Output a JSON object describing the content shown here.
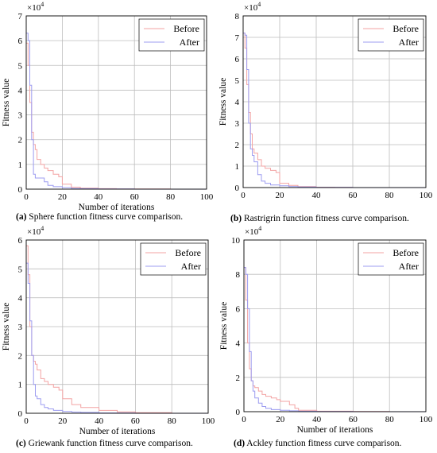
{
  "figure": {
    "panels": [
      {
        "caption_label": "(a)",
        "caption_text": "Sphere function fitness curve comparison.",
        "multiplier": "×10",
        "multiplier_exp": "4",
        "y_ticks": [
          "0",
          "1",
          "2",
          "3",
          "4",
          "5",
          "6",
          "7"
        ],
        "x_ticks": [
          "0",
          "20",
          "40",
          "60",
          "80",
          "100"
        ],
        "xlabel": "Number of iterations",
        "ylabel": "Fitness value",
        "show_xlabel": true,
        "show_ylabel": true
      },
      {
        "caption_label": "(b)",
        "caption_text": "Rastrigrin function fitness curve comparison.",
        "multiplier": "×10",
        "multiplier_exp": "4",
        "y_ticks": [
          "0",
          "1",
          "2",
          "3",
          "4",
          "5",
          "6",
          "7",
          "8"
        ],
        "x_ticks": [
          "0",
          "20",
          "40",
          "60",
          "80",
          "100"
        ],
        "xlabel": "",
        "ylabel": "Fitness value",
        "show_xlabel": false,
        "show_ylabel": true
      },
      {
        "caption_label": "(c)",
        "caption_text": "Griewank function fitness curve comparison.",
        "multiplier": "×10",
        "multiplier_exp": "4",
        "y_ticks": [
          "0",
          "1",
          "2",
          "3",
          "4",
          "5",
          "6"
        ],
        "x_ticks": [
          "0",
          "20",
          "40",
          "60",
          "80",
          "100"
        ],
        "xlabel": "Number of iterations",
        "ylabel": "Fitness value",
        "show_xlabel": true,
        "show_ylabel": true
      },
      {
        "caption_label": "(d)",
        "caption_text": "Ackley function fitness curve comparison.",
        "multiplier": "×10",
        "multiplier_exp": "4",
        "y_ticks": [
          "0",
          "2",
          "4",
          "6",
          "8",
          "10"
        ],
        "x_ticks": [
          "0",
          "20",
          "40",
          "60",
          "80",
          "100"
        ],
        "xlabel": "Number of iterations",
        "ylabel": "Fitness value",
        "show_xlabel": true,
        "show_ylabel": true
      }
    ]
  },
  "colors": {
    "before": "#f3a3a3",
    "after": "#9c9cf0",
    "grid": "#bdbdbd"
  },
  "chart_data": [
    {
      "type": "line",
      "title": "Sphere function fitness curve comparison.",
      "xlabel": "Number of iterations",
      "ylabel": "Fitness value",
      "y_multiplier": 10000,
      "xlim": [
        0,
        100
      ],
      "ylim": [
        0,
        7
      ],
      "grid": true,
      "legend": "top-right",
      "series": [
        {
          "name": "Before",
          "x": [
            0,
            1,
            2,
            3,
            4,
            5,
            6,
            8,
            10,
            12,
            15,
            18,
            20,
            25,
            30,
            40,
            50,
            60,
            80,
            100
          ],
          "y": [
            5.9,
            5.0,
            3.5,
            2.3,
            1.8,
            1.6,
            1.2,
            1.0,
            0.85,
            0.75,
            0.6,
            0.5,
            0.2,
            0.08,
            0.04,
            0.02,
            0.01,
            0.005,
            0,
            0
          ]
        },
        {
          "name": "After",
          "x": [
            0,
            1,
            2,
            3,
            4,
            5,
            6,
            8,
            10,
            12,
            15,
            20,
            25,
            30,
            40,
            60,
            80,
            100
          ],
          "y": [
            6.3,
            6.0,
            4.2,
            2.0,
            0.6,
            0.45,
            0.45,
            0.45,
            0.3,
            0.15,
            0.1,
            0.06,
            0.03,
            0.02,
            0.01,
            0,
            0,
            0
          ]
        }
      ]
    },
    {
      "type": "line",
      "title": "Rastrigrin function fitness curve comparison.",
      "xlabel": "",
      "ylabel": "Fitness value",
      "y_multiplier": 10000,
      "xlim": [
        0,
        100
      ],
      "ylim": [
        0,
        8
      ],
      "grid": true,
      "legend": "top-right",
      "series": [
        {
          "name": "Before",
          "x": [
            0,
            1,
            2,
            3,
            4,
            5,
            6,
            8,
            10,
            12,
            15,
            18,
            20,
            25,
            30,
            40,
            50,
            60,
            80,
            100
          ],
          "y": [
            7.2,
            6.5,
            4.8,
            3.5,
            2.5,
            1.8,
            1.6,
            1.3,
            1.0,
            0.9,
            0.8,
            0.7,
            0.2,
            0.1,
            0.05,
            0.02,
            0.01,
            0,
            0,
            0
          ]
        },
        {
          "name": "After",
          "x": [
            0,
            1,
            2,
            3,
            4,
            5,
            6,
            8,
            10,
            12,
            15,
            20,
            25,
            30,
            40,
            60,
            80,
            100
          ],
          "y": [
            7.2,
            7.1,
            5.5,
            3.0,
            1.8,
            1.5,
            1.2,
            0.6,
            0.3,
            0.2,
            0.12,
            0.08,
            0.05,
            0.03,
            0.01,
            0,
            0,
            0
          ]
        }
      ]
    },
    {
      "type": "line",
      "title": "Griewank function fitness curve comparison.",
      "xlabel": "Number of iterations",
      "ylabel": "Fitness value",
      "y_multiplier": 10000,
      "xlim": [
        0,
        100
      ],
      "ylim": [
        0,
        6
      ],
      "grid": true,
      "legend": "top-right",
      "series": [
        {
          "name": "Before",
          "x": [
            0,
            1,
            2,
            3,
            4,
            5,
            6,
            8,
            10,
            12,
            15,
            18,
            20,
            25,
            30,
            40,
            50,
            60,
            80,
            100
          ],
          "y": [
            5.8,
            4.8,
            3.0,
            2.0,
            1.8,
            1.7,
            1.5,
            1.2,
            1.1,
            1.0,
            0.9,
            0.8,
            0.5,
            0.3,
            0.2,
            0.1,
            0.05,
            0.02,
            0,
            0
          ]
        },
        {
          "name": "After",
          "x": [
            0,
            1,
            2,
            3,
            4,
            5,
            6,
            8,
            10,
            12,
            15,
            20,
            25,
            30,
            40,
            60,
            80,
            100
          ],
          "y": [
            5.2,
            4.5,
            3.2,
            2.0,
            1.0,
            0.6,
            0.5,
            0.3,
            0.2,
            0.15,
            0.1,
            0.06,
            0.04,
            0.03,
            0.01,
            0,
            0,
            0
          ]
        }
      ]
    },
    {
      "type": "line",
      "title": "Ackley function fitness curve comparison.",
      "xlabel": "Number of iterations",
      "ylabel": "Fitness value",
      "y_multiplier": 10000,
      "xlim": [
        0,
        100
      ],
      "ylim": [
        0,
        10
      ],
      "grid": true,
      "legend": "top-right",
      "series": [
        {
          "name": "Before",
          "x": [
            0,
            1,
            2,
            3,
            4,
            5,
            6,
            8,
            10,
            12,
            15,
            18,
            20,
            25,
            28,
            30,
            40,
            60,
            80,
            100
          ],
          "y": [
            8.4,
            6.5,
            4.0,
            2.5,
            1.8,
            1.5,
            1.4,
            1.2,
            1.0,
            0.9,
            0.8,
            0.7,
            0.6,
            0.4,
            0.2,
            0.08,
            0.03,
            0.01,
            0,
            0
          ]
        },
        {
          "name": "After",
          "x": [
            0,
            1,
            2,
            3,
            4,
            5,
            6,
            8,
            10,
            12,
            15,
            20,
            25,
            30,
            40,
            60,
            80,
            100
          ],
          "y": [
            8.4,
            8.0,
            6.0,
            3.5,
            1.8,
            1.2,
            0.8,
            0.5,
            0.3,
            0.2,
            0.12,
            0.08,
            0.05,
            0.03,
            0.01,
            0,
            0,
            0
          ]
        }
      ]
    }
  ]
}
